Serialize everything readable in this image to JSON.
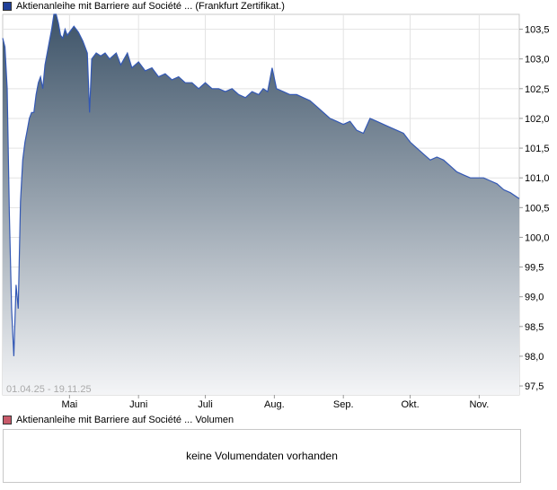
{
  "top_legend": {
    "label": "Aktienanleihe mit Barriere auf Société ... (Frankfurt Zertifikat.)",
    "color": "#1f3f99"
  },
  "bottom_legend": {
    "label": "Aktienanleihe mit Barriere auf Société ... Volumen",
    "color": "#c85a6a"
  },
  "volume_panel": {
    "message": "keine Volumendaten vorhanden"
  },
  "chart_data": {
    "type": "area",
    "date_range_label": "01.04.25 - 19.11.25",
    "x_start": "2025-04-01",
    "x_end": "2025-11-19",
    "ylim": [
      97.35,
      103.75
    ],
    "yticks": [
      "97,5",
      "98,0",
      "98,5",
      "99,0",
      "99,5",
      "100,0",
      "100,5",
      "101,0",
      "101,5",
      "102,0",
      "102,5",
      "103,0",
      "103,5"
    ],
    "ytick_values": [
      97.5,
      98.0,
      98.5,
      99.0,
      99.5,
      100.0,
      100.5,
      101.0,
      101.5,
      102.0,
      102.5,
      103.0,
      103.5
    ],
    "xticks": [
      {
        "label": "Mai",
        "date": "2025-05-01"
      },
      {
        "label": "Juni",
        "date": "2025-06-01"
      },
      {
        "label": "Juli",
        "date": "2025-07-01"
      },
      {
        "label": "Aug.",
        "date": "2025-08-01"
      },
      {
        "label": "Sep.",
        "date": "2025-09-01"
      },
      {
        "label": "Okt.",
        "date": "2025-10-01"
      },
      {
        "label": "Nov.",
        "date": "2025-11-01"
      }
    ],
    "grid": true,
    "line_color": "#3358b5",
    "fill_top_color": "#3d5368",
    "fill_bottom_color": "#f4f5f7",
    "series": [
      {
        "values": [
          [
            "2025-04-01",
            103.35
          ],
          [
            "2025-04-02",
            103.2
          ],
          [
            "2025-04-03",
            102.5
          ],
          [
            "2025-04-04",
            100.4
          ],
          [
            "2025-04-05",
            98.8
          ],
          [
            "2025-04-06",
            98.0
          ],
          [
            "2025-04-07",
            99.2
          ],
          [
            "2025-04-08",
            98.8
          ],
          [
            "2025-04-09",
            100.6
          ],
          [
            "2025-04-10",
            101.3
          ],
          [
            "2025-04-11",
            101.6
          ],
          [
            "2025-04-12",
            101.8
          ],
          [
            "2025-04-13",
            102.0
          ],
          [
            "2025-04-14",
            102.1
          ],
          [
            "2025-04-15",
            102.1
          ],
          [
            "2025-04-16",
            102.4
          ],
          [
            "2025-04-17",
            102.6
          ],
          [
            "2025-04-18",
            102.7
          ],
          [
            "2025-04-19",
            102.5
          ],
          [
            "2025-04-20",
            102.9
          ],
          [
            "2025-04-22",
            103.3
          ],
          [
            "2025-04-23",
            103.5
          ],
          [
            "2025-04-24",
            103.9
          ],
          [
            "2025-04-25",
            103.8
          ],
          [
            "2025-04-26",
            103.6
          ],
          [
            "2025-04-27",
            103.4
          ],
          [
            "2025-04-28",
            103.35
          ],
          [
            "2025-04-29",
            103.5
          ],
          [
            "2025-04-30",
            103.4
          ],
          [
            "2025-05-02",
            103.5
          ],
          [
            "2025-05-03",
            103.55
          ],
          [
            "2025-05-05",
            103.45
          ],
          [
            "2025-05-07",
            103.3
          ],
          [
            "2025-05-09",
            103.1
          ],
          [
            "2025-05-10",
            102.1
          ],
          [
            "2025-05-11",
            103.0
          ],
          [
            "2025-05-13",
            103.1
          ],
          [
            "2025-05-15",
            103.05
          ],
          [
            "2025-05-17",
            103.1
          ],
          [
            "2025-05-19",
            103.0
          ],
          [
            "2025-05-22",
            103.1
          ],
          [
            "2025-05-24",
            102.9
          ],
          [
            "2025-05-27",
            103.1
          ],
          [
            "2025-05-29",
            102.85
          ],
          [
            "2025-06-01",
            102.95
          ],
          [
            "2025-06-04",
            102.8
          ],
          [
            "2025-06-07",
            102.85
          ],
          [
            "2025-06-10",
            102.7
          ],
          [
            "2025-06-13",
            102.75
          ],
          [
            "2025-06-16",
            102.65
          ],
          [
            "2025-06-19",
            102.7
          ],
          [
            "2025-06-22",
            102.6
          ],
          [
            "2025-06-25",
            102.6
          ],
          [
            "2025-06-28",
            102.5
          ],
          [
            "2025-07-01",
            102.6
          ],
          [
            "2025-07-04",
            102.5
          ],
          [
            "2025-07-07",
            102.5
          ],
          [
            "2025-07-10",
            102.45
          ],
          [
            "2025-07-13",
            102.5
          ],
          [
            "2025-07-16",
            102.4
          ],
          [
            "2025-07-19",
            102.35
          ],
          [
            "2025-07-22",
            102.45
          ],
          [
            "2025-07-25",
            102.4
          ],
          [
            "2025-07-27",
            102.5
          ],
          [
            "2025-07-29",
            102.45
          ],
          [
            "2025-07-31",
            102.85
          ],
          [
            "2025-08-02",
            102.5
          ],
          [
            "2025-08-05",
            102.45
          ],
          [
            "2025-08-08",
            102.4
          ],
          [
            "2025-08-11",
            102.4
          ],
          [
            "2025-08-14",
            102.35
          ],
          [
            "2025-08-17",
            102.3
          ],
          [
            "2025-08-20",
            102.2
          ],
          [
            "2025-08-23",
            102.1
          ],
          [
            "2025-08-26",
            102.0
          ],
          [
            "2025-08-29",
            101.95
          ],
          [
            "2025-09-01",
            101.9
          ],
          [
            "2025-09-04",
            101.95
          ],
          [
            "2025-09-07",
            101.8
          ],
          [
            "2025-09-10",
            101.75
          ],
          [
            "2025-09-13",
            102.0
          ],
          [
            "2025-09-16",
            101.95
          ],
          [
            "2025-09-19",
            101.9
          ],
          [
            "2025-09-22",
            101.85
          ],
          [
            "2025-09-25",
            101.8
          ],
          [
            "2025-09-28",
            101.75
          ],
          [
            "2025-10-01",
            101.6
          ],
          [
            "2025-10-04",
            101.5
          ],
          [
            "2025-10-07",
            101.4
          ],
          [
            "2025-10-10",
            101.3
          ],
          [
            "2025-10-13",
            101.35
          ],
          [
            "2025-10-16",
            101.3
          ],
          [
            "2025-10-19",
            101.2
          ],
          [
            "2025-10-22",
            101.1
          ],
          [
            "2025-10-25",
            101.05
          ],
          [
            "2025-10-28",
            101.0
          ],
          [
            "2025-10-31",
            101.0
          ],
          [
            "2025-11-03",
            101.0
          ],
          [
            "2025-11-06",
            100.95
          ],
          [
            "2025-11-09",
            100.9
          ],
          [
            "2025-11-12",
            100.8
          ],
          [
            "2025-11-15",
            100.75
          ],
          [
            "2025-11-19",
            100.65
          ]
        ]
      }
    ]
  }
}
